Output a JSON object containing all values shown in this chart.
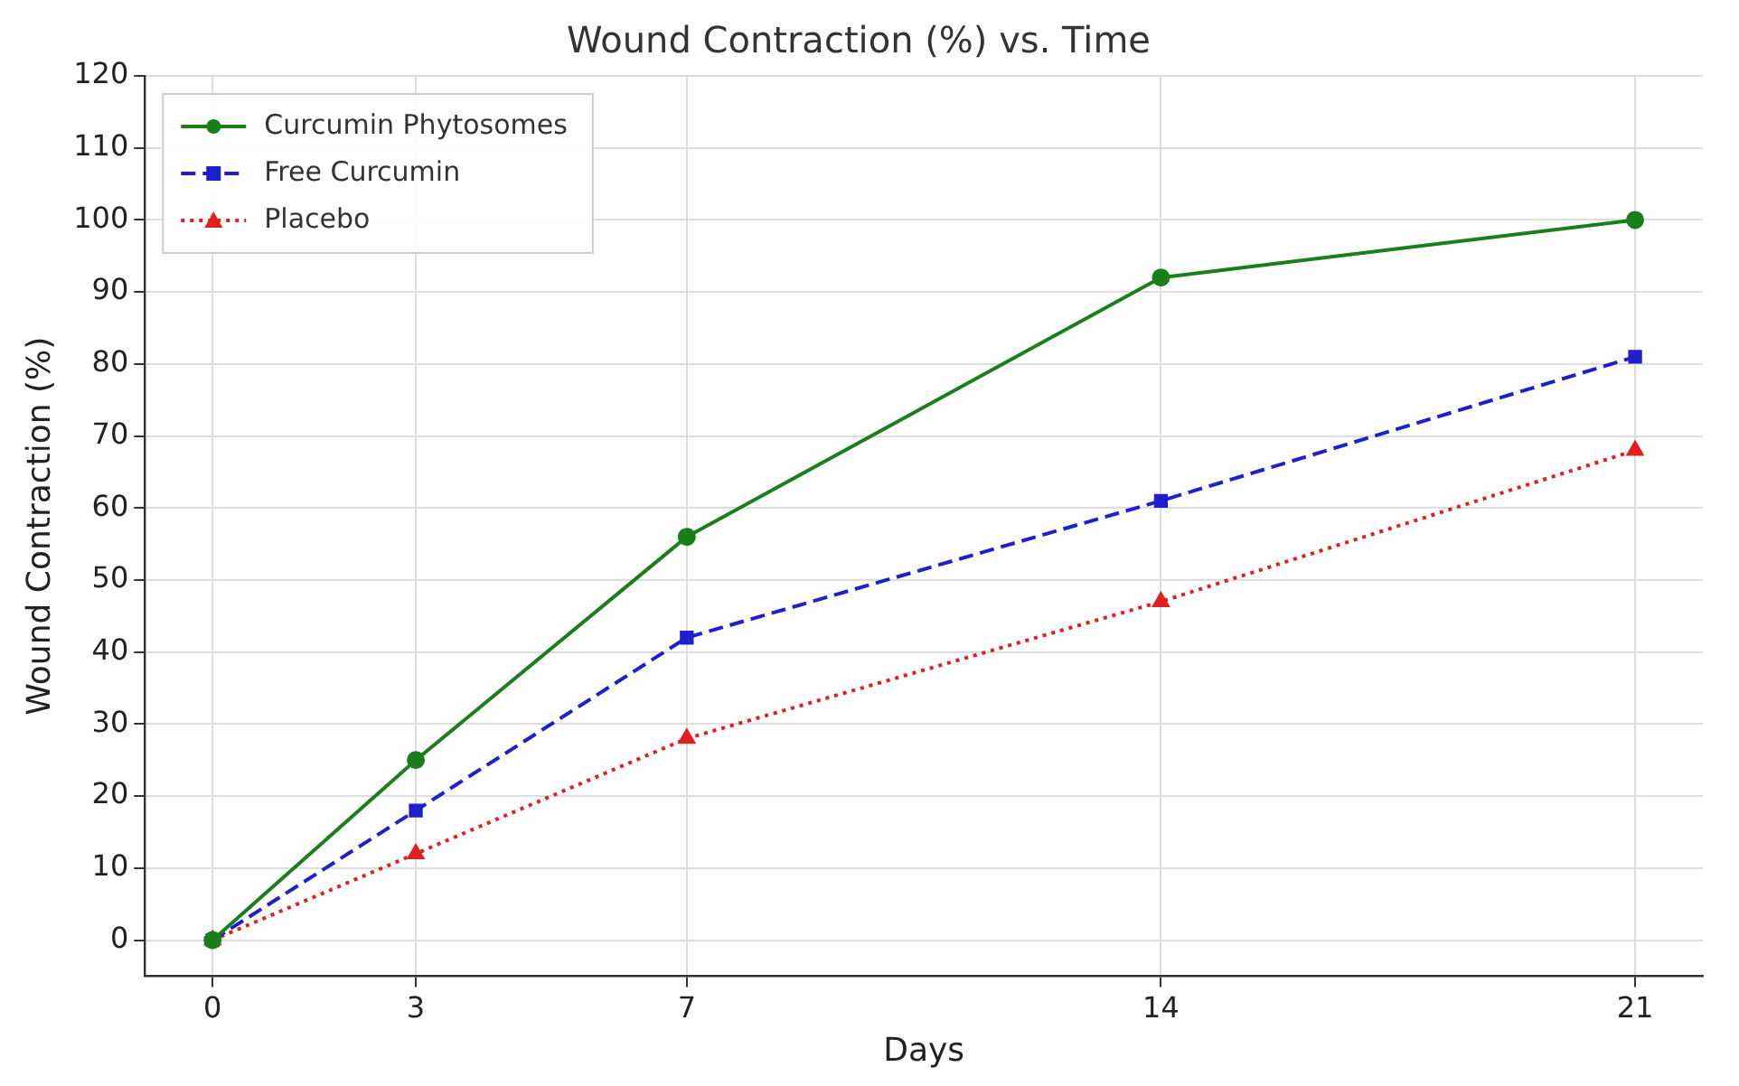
{
  "chart_data": {
    "type": "line",
    "title": "Wound Contraction (%) vs. Time",
    "xlabel": "Days",
    "ylabel": "Wound Contraction (%)",
    "x": [
      0,
      3,
      7,
      14,
      21
    ],
    "series": [
      {
        "name": "Curcumin Phytosomes",
        "color": "#1a7f1a",
        "values": [
          0,
          25,
          56,
          92,
          100
        ],
        "marker": "circle",
        "line_style": "solid"
      },
      {
        "name": "Free Curcumin",
        "color": "#1f1fcc",
        "values": [
          0,
          18,
          42,
          61,
          81
        ],
        "marker": "square",
        "line_style": "dashed"
      },
      {
        "name": "Placebo",
        "color": "#e0201e",
        "values": [
          0,
          12,
          28,
          47,
          68
        ],
        "marker": "triangle",
        "line_style": "dotted"
      }
    ],
    "xlim": [
      -1,
      22
    ],
    "xticks": [
      0,
      3,
      7,
      14,
      21
    ],
    "ylim": [
      -5,
      120
    ],
    "yticks": [
      0,
      10,
      20,
      30,
      40,
      50,
      60,
      70,
      80,
      90,
      100,
      110,
      120
    ],
    "grid": true,
    "legend": "top left"
  }
}
